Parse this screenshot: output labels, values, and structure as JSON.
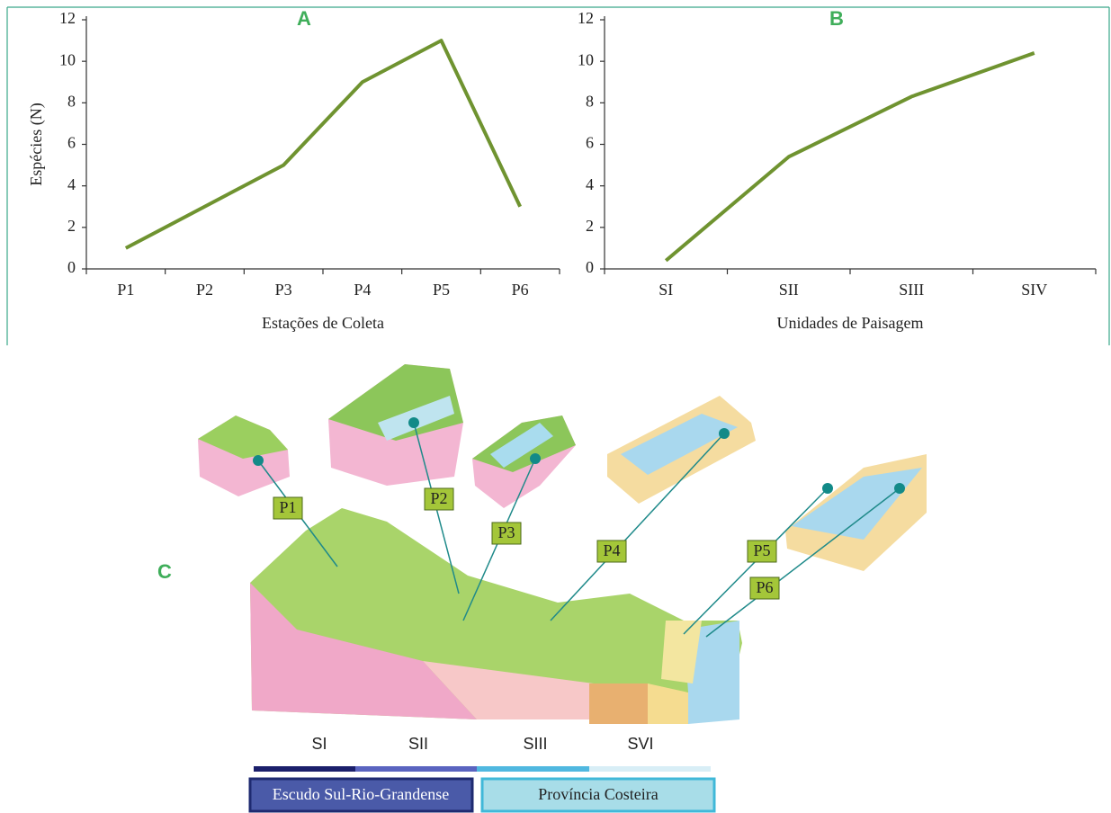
{
  "chart_data": [
    {
      "type": "line",
      "title": "A",
      "y_label": "Espécies (N)",
      "x_label": "Estações de Coleta",
      "categories": [
        "P1",
        "P2",
        "P3",
        "P4",
        "P5",
        "P6"
      ],
      "values": [
        1,
        3,
        5,
        9,
        11,
        3
      ],
      "color": "#6f9330",
      "ylim": [
        0,
        12
      ],
      "yticks": [
        0,
        2,
        4,
        6,
        8,
        10,
        12
      ],
      "grid": false
    },
    {
      "type": "line",
      "title": "B",
      "x_label": "Unidades de Paisagem",
      "categories": [
        "SI",
        "SII",
        "SIII",
        "SIV"
      ],
      "values": [
        0.4,
        5.4,
        8.3,
        10.4
      ],
      "color": "#6f9330",
      "ylim": [
        0,
        12
      ],
      "yticks": [
        0,
        2,
        4,
        6,
        8,
        10,
        12
      ],
      "grid": false
    }
  ],
  "panel_c": {
    "label": "C",
    "stations": [
      "P1",
      "P2",
      "P3",
      "P4",
      "P5",
      "P6"
    ],
    "units": [
      "SI",
      "SII",
      "SIII",
      "SVI"
    ],
    "provinces": [
      "Escudo Sul-Rio-Grandense",
      "Província Costeira"
    ]
  }
}
